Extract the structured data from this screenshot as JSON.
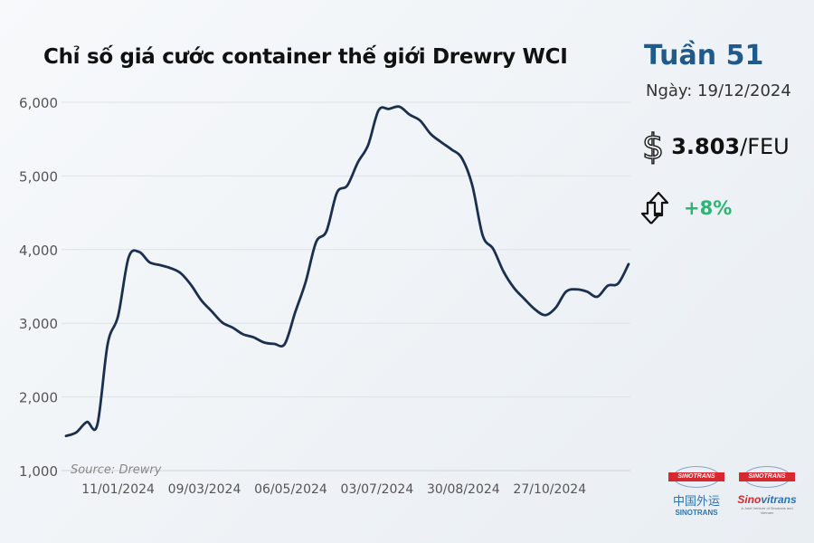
{
  "header": {
    "title": "Chỉ số giá cước container thế giới Drewry WCI"
  },
  "info": {
    "week": "Tuần 51",
    "date": "Ngày: 19/12/2024",
    "price_icon": "dollar-icon",
    "price_value": "3.803",
    "price_unit": "/FEU",
    "change_icon": "up-down-arrows-icon",
    "change": "+8%",
    "change_color": "#2bb673"
  },
  "logos": {
    "sinotrans_badge": "SINOTRANS",
    "sinotrans_cn": "中国外运",
    "sinotrans_sub": "SINOTRANS",
    "sinovitrans_badge": "SINOTRANS",
    "sinovitrans_red": "Sino",
    "sinovitrans_blue": "vitrans",
    "sinovitrans_tag": "A Joint Venture of Sinotrans and Vietnam"
  },
  "chart_data": {
    "type": "line",
    "title": "Chỉ số giá cước container thế giới Drewry WCI",
    "source": "Source: Drewry",
    "ylim": [
      1000,
      6000
    ],
    "yticks": [
      "1,000",
      "2,000",
      "3,000",
      "4,000",
      "5,000",
      "6,000"
    ],
    "ytick_values": [
      1000,
      2000,
      3000,
      4000,
      5000,
      6000
    ],
    "xticks": [
      "11/01/2024",
      "09/03/2024",
      "06/05/2024",
      "03/07/2024",
      "30/08/2024",
      "27/10/2024"
    ],
    "grid": "horizontal",
    "line_color": "#1b2f4e",
    "x_start": "07/12/2023",
    "x_end": "19/12/2024",
    "x_interval": "weekly",
    "values": [
      1470,
      1520,
      1660,
      1620,
      2720,
      3100,
      3890,
      3970,
      3830,
      3790,
      3750,
      3680,
      3520,
      3310,
      3160,
      3010,
      2940,
      2850,
      2810,
      2740,
      2720,
      2720,
      3150,
      3560,
      4100,
      4250,
      4770,
      4870,
      5180,
      5420,
      5890,
      5910,
      5940,
      5830,
      5750,
      5570,
      5460,
      5360,
      5240,
      4870,
      4190,
      4010,
      3700,
      3480,
      3330,
      3190,
      3110,
      3210,
      3430,
      3460,
      3430,
      3360,
      3510,
      3540,
      3803
    ]
  }
}
